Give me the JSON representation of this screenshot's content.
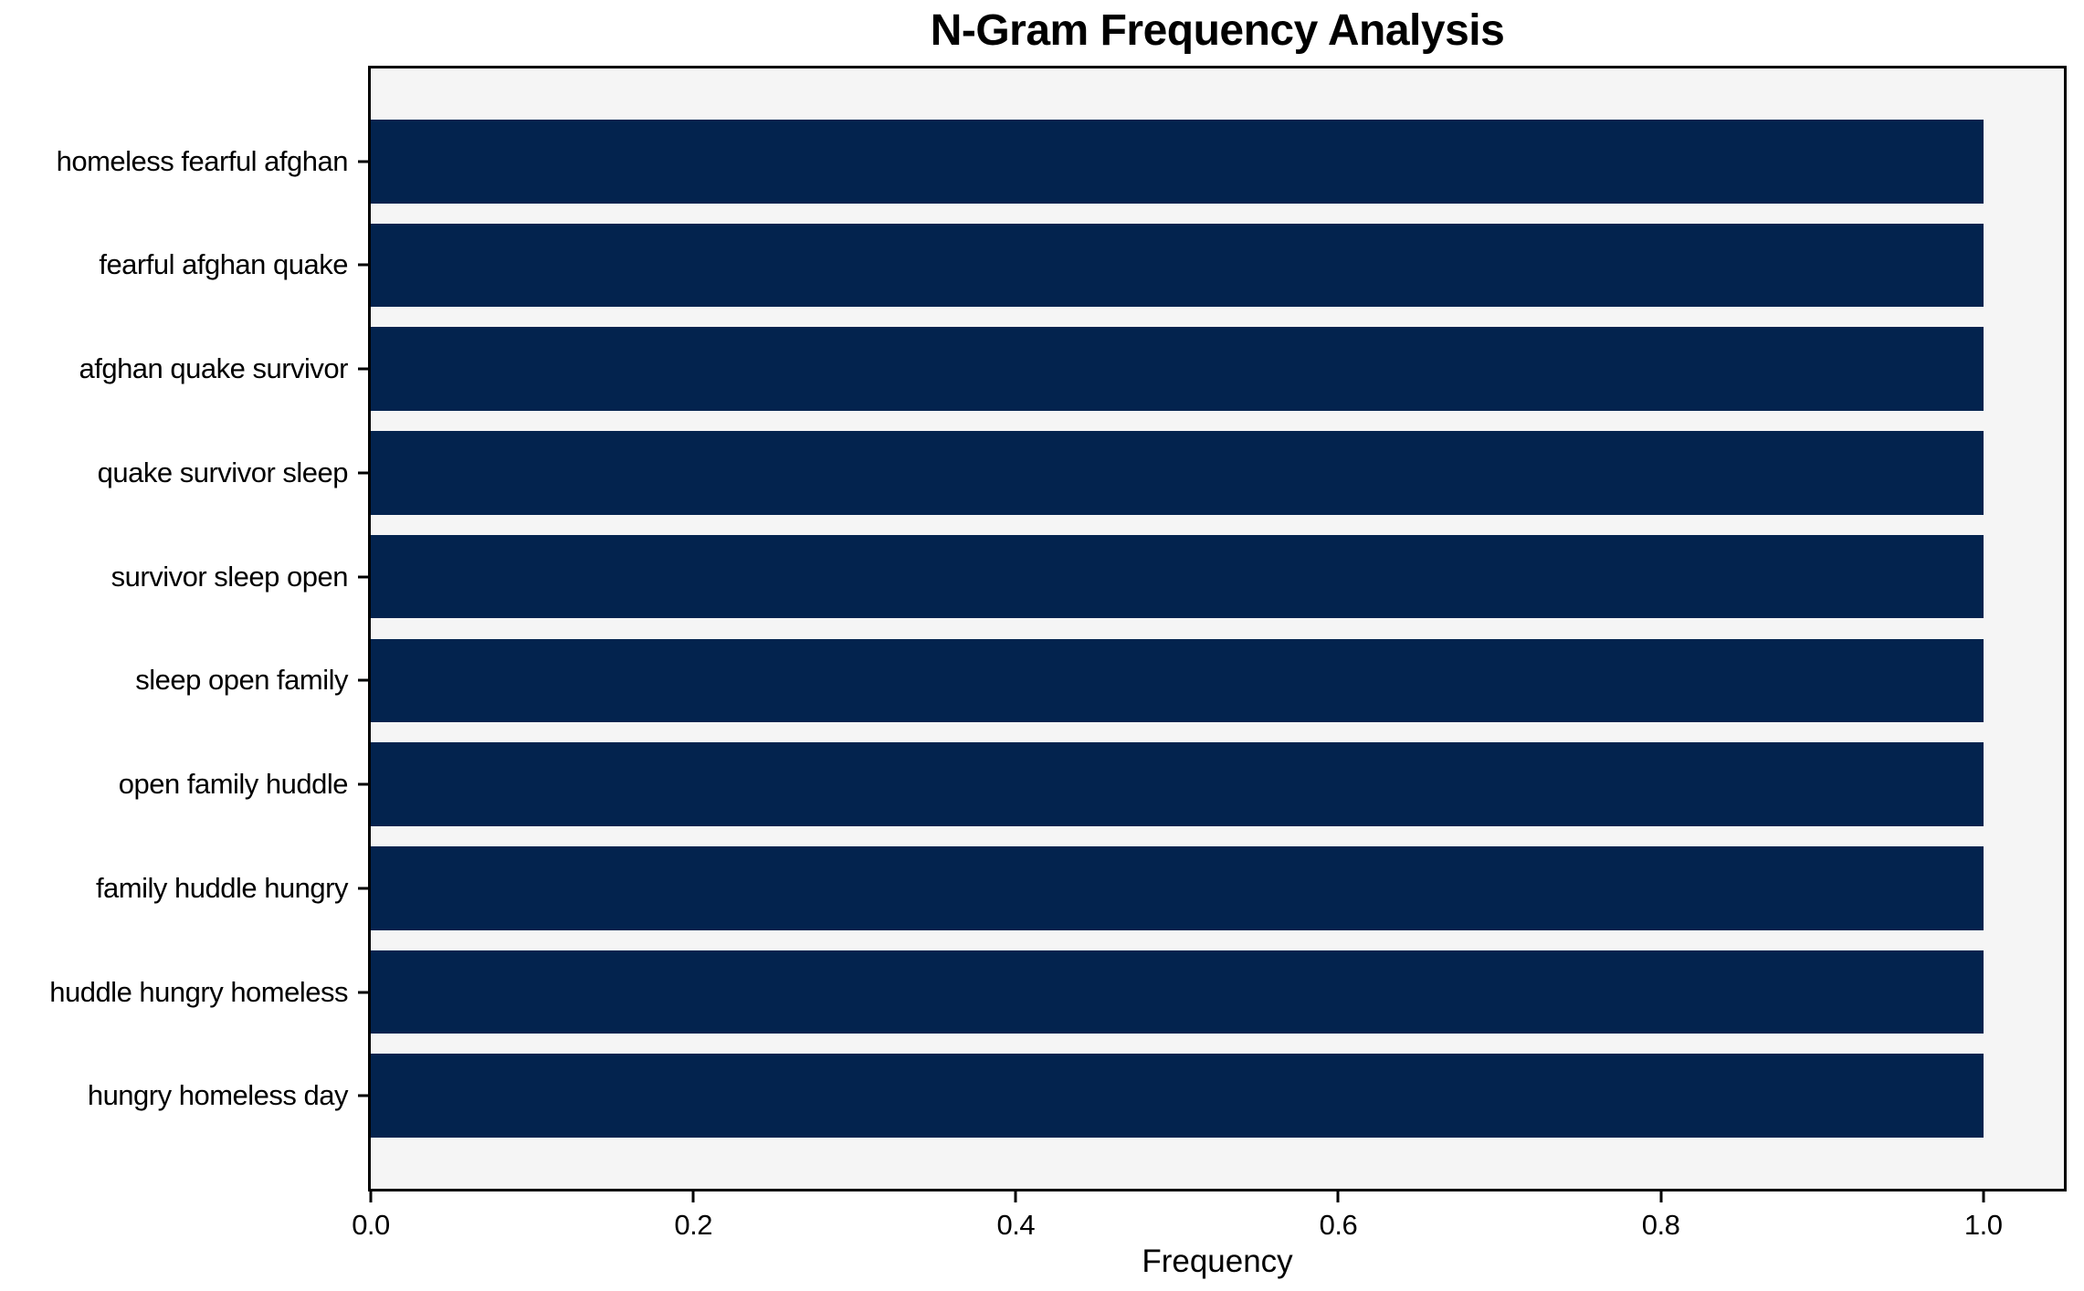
{
  "chart_data": {
    "type": "bar",
    "orientation": "horizontal",
    "title": "N-Gram Frequency Analysis",
    "xlabel": "Frequency",
    "ylabel": "",
    "categories": [
      "homeless fearful afghan",
      "fearful afghan quake",
      "afghan quake survivor",
      "quake survivor sleep",
      "survivor sleep open",
      "sleep open family",
      "open family huddle",
      "family huddle hungry",
      "huddle hungry homeless",
      "hungry homeless day"
    ],
    "values": [
      1.0,
      1.0,
      1.0,
      1.0,
      1.0,
      1.0,
      1.0,
      1.0,
      1.0,
      1.0
    ],
    "xlim": [
      0.0,
      1.05
    ],
    "xticks": [
      0.0,
      0.2,
      0.4,
      0.6,
      0.8,
      1.0
    ],
    "xtick_labels": [
      "0.0",
      "0.2",
      "0.4",
      "0.6",
      "0.8",
      "1.0"
    ],
    "grid": false,
    "legend": null,
    "colors": {
      "bar": "#03234e",
      "plot_background": "#f5f5f5",
      "spine": "#000000",
      "text": "#000000"
    }
  }
}
